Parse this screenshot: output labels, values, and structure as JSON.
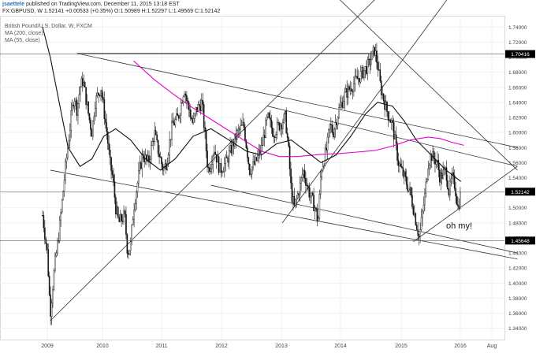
{
  "header": {
    "author": "jsaettele",
    "published": "published on TradingView.com, December 11, 2015 13:18 EST",
    "ohlc_line": "FX:GBPUSD, W  1.52141  +0.00533 (+0.35%)  O:1.50989  H:1.52297  L:1.49569  C:1.52142"
  },
  "legend": {
    "title": "British Pound/U.S. Dollar, W, FXCM",
    "ma1": "MA (200, close)",
    "ma2": "MA (55, close)"
  },
  "annotation": "oh my!",
  "colors": {
    "candle": "#111111",
    "ma200": "#e600cc",
    "ma55": "#111111",
    "channel": "#333333",
    "price_tag_bg": "#000000",
    "price_tag_text": "#ffffff"
  },
  "chart_data": {
    "type": "candlestick",
    "symbol": "GBPUSD",
    "timeframe": "W",
    "x_tick_labels": [
      "2009",
      "2010",
      "2011",
      "2012",
      "2013",
      "2014",
      "2015",
      "2016",
      "Aug"
    ],
    "y_tick_labels": [
      "1.74000",
      "1.72000",
      "1.70000",
      "1.68000",
      "1.66000",
      "1.64000",
      "1.62000",
      "1.60000",
      "1.58000",
      "1.56000",
      "1.54000",
      "1.52000",
      "1.50000",
      "1.48000",
      "1.46000",
      "1.44000",
      "1.42000",
      "1.40000",
      "1.38000",
      "1.36000",
      "1.34000"
    ],
    "ylim": [
      1.325,
      1.755
    ],
    "price_tags": [
      "1.70416",
      "1.52142",
      "1.45648"
    ],
    "price_tag_values": [
      1.70416,
      1.52142,
      1.45648
    ],
    "closes": [
      [
        2008.92,
        1.49
      ],
      [
        2009.0,
        1.44
      ],
      [
        2009.05,
        1.36
      ],
      [
        2009.12,
        1.42
      ],
      [
        2009.2,
        1.47
      ],
      [
        2009.3,
        1.55
      ],
      [
        2009.4,
        1.62
      ],
      [
        2009.45,
        1.65
      ],
      [
        2009.5,
        1.63
      ],
      [
        2009.55,
        1.66
      ],
      [
        2009.6,
        1.67
      ],
      [
        2009.7,
        1.62
      ],
      [
        2009.75,
        1.6
      ],
      [
        2009.8,
        1.64
      ],
      [
        2009.9,
        1.66
      ],
      [
        2010.0,
        1.6
      ],
      [
        2010.05,
        1.56
      ],
      [
        2010.1,
        1.54
      ],
      [
        2010.15,
        1.5
      ],
      [
        2010.2,
        1.48
      ],
      [
        2010.3,
        1.49
      ],
      [
        2010.35,
        1.44
      ],
      [
        2010.4,
        1.45
      ],
      [
        2010.45,
        1.5
      ],
      [
        2010.55,
        1.55
      ],
      [
        2010.6,
        1.57
      ],
      [
        2010.7,
        1.56
      ],
      [
        2010.8,
        1.6
      ],
      [
        2010.85,
        1.58
      ],
      [
        2010.95,
        1.55
      ],
      [
        2011.0,
        1.56
      ],
      [
        2011.1,
        1.61
      ],
      [
        2011.2,
        1.62
      ],
      [
        2011.3,
        1.66
      ],
      [
        2011.35,
        1.64
      ],
      [
        2011.45,
        1.61
      ],
      [
        2011.5,
        1.63
      ],
      [
        2011.6,
        1.64
      ],
      [
        2011.7,
        1.55
      ],
      [
        2011.75,
        1.56
      ],
      [
        2011.8,
        1.58
      ],
      [
        2011.9,
        1.55
      ],
      [
        2012.0,
        1.56
      ],
      [
        2012.1,
        1.58
      ],
      [
        2012.2,
        1.6
      ],
      [
        2012.3,
        1.61
      ],
      [
        2012.35,
        1.58
      ],
      [
        2012.4,
        1.55
      ],
      [
        2012.5,
        1.56
      ],
      [
        2012.6,
        1.58
      ],
      [
        2012.7,
        1.62
      ],
      [
        2012.8,
        1.6
      ],
      [
        2012.9,
        1.61
      ],
      [
        2013.0,
        1.62
      ],
      [
        2013.05,
        1.58
      ],
      [
        2013.1,
        1.52
      ],
      [
        2013.15,
        1.5
      ],
      [
        2013.25,
        1.53
      ],
      [
        2013.3,
        1.55
      ],
      [
        2013.4,
        1.52
      ],
      [
        2013.5,
        1.5
      ],
      [
        2013.55,
        1.48
      ],
      [
        2013.6,
        1.55
      ],
      [
        2013.7,
        1.58
      ],
      [
        2013.75,
        1.61
      ],
      [
        2013.8,
        1.6
      ],
      [
        2013.9,
        1.63
      ],
      [
        2014.0,
        1.65
      ],
      [
        2014.1,
        1.66
      ],
      [
        2014.2,
        1.67
      ],
      [
        2014.3,
        1.68
      ],
      [
        2014.4,
        1.69
      ],
      [
        2014.5,
        1.71
      ],
      [
        2014.55,
        1.69
      ],
      [
        2014.6,
        1.66
      ],
      [
        2014.7,
        1.63
      ],
      [
        2014.8,
        1.61
      ],
      [
        2014.9,
        1.56
      ],
      [
        2015.0,
        1.54
      ],
      [
        2015.1,
        1.52
      ],
      [
        2015.2,
        1.48
      ],
      [
        2015.25,
        1.46
      ],
      [
        2015.3,
        1.49
      ],
      [
        2015.35,
        1.52
      ],
      [
        2015.4,
        1.56
      ],
      [
        2015.45,
        1.57
      ],
      [
        2015.55,
        1.56
      ],
      [
        2015.6,
        1.54
      ],
      [
        2015.7,
        1.55
      ],
      [
        2015.75,
        1.52
      ],
      [
        2015.8,
        1.54
      ],
      [
        2015.85,
        1.53
      ],
      [
        2015.9,
        1.5
      ],
      [
        2015.95,
        1.52
      ]
    ],
    "ma200": [
      [
        2010.45,
        1.695
      ],
      [
        2010.8,
        1.67
      ],
      [
        2011.1,
        1.652
      ],
      [
        2011.4,
        1.635
      ],
      [
        2011.7,
        1.62
      ],
      [
        2012.0,
        1.605
      ],
      [
        2012.3,
        1.59
      ],
      [
        2012.6,
        1.575
      ],
      [
        2012.9,
        1.568
      ],
      [
        2013.2,
        1.568
      ],
      [
        2013.6,
        1.571
      ],
      [
        2013.9,
        1.572
      ],
      [
        2014.2,
        1.574
      ],
      [
        2014.5,
        1.576
      ],
      [
        2014.8,
        1.582
      ],
      [
        2015.1,
        1.59
      ],
      [
        2015.4,
        1.594
      ],
      [
        2015.6,
        1.592
      ],
      [
        2015.8,
        1.587
      ],
      [
        2016.0,
        1.583
      ]
    ],
    "ma55": [
      [
        2008.92,
        1.74
      ],
      [
        2009.05,
        1.7
      ],
      [
        2009.2,
        1.64
      ],
      [
        2009.35,
        1.58
      ],
      [
        2009.55,
        1.555
      ],
      [
        2009.75,
        1.565
      ],
      [
        2009.95,
        1.595
      ],
      [
        2010.15,
        1.605
      ],
      [
        2010.4,
        1.59
      ],
      [
        2010.65,
        1.565
      ],
      [
        2010.9,
        1.55
      ],
      [
        2011.15,
        1.565
      ],
      [
        2011.45,
        1.595
      ],
      [
        2011.75,
        1.605
      ],
      [
        2012.05,
        1.59
      ],
      [
        2012.35,
        1.575
      ],
      [
        2012.6,
        1.57
      ],
      [
        2012.85,
        1.585
      ],
      [
        2013.1,
        1.59
      ],
      [
        2013.35,
        1.575
      ],
      [
        2013.6,
        1.56
      ],
      [
        2013.85,
        1.57
      ],
      [
        2014.1,
        1.595
      ],
      [
        2014.35,
        1.625
      ],
      [
        2014.55,
        1.64
      ],
      [
        2014.8,
        1.635
      ],
      [
        2015.0,
        1.615
      ],
      [
        2015.2,
        1.59
      ],
      [
        2015.45,
        1.57
      ],
      [
        2015.7,
        1.55
      ],
      [
        2015.95,
        1.535
      ]
    ],
    "trendlines": [
      [
        [
          2009.5,
          1.705
        ],
        [
          2016.9,
          1.58
        ]
      ],
      [
        [
          2012.7,
          1.635
        ],
        [
          2016.9,
          1.555
        ]
      ],
      [
        [
          2009.05,
          1.55
        ],
        [
          2016.9,
          1.432
        ]
      ],
      [
        [
          2011.75,
          1.53
        ],
        [
          2016.9,
          1.44
        ]
      ],
      [
        [
          2009.05,
          1.35
        ],
        [
          2014.55,
          1.78
        ]
      ],
      [
        [
          2012.95,
          1.48
        ],
        [
          2015.75,
          1.78
        ]
      ],
      [
        [
          2015.15,
          1.455
        ],
        [
          2016.9,
          1.555
        ]
      ],
      [
        [
          2013.8,
          1.785
        ],
        [
          2016.9,
          1.55
        ]
      ],
      [
        [
          2009.5,
          1.705
        ],
        [
          2014.55,
          1.705
        ]
      ]
    ]
  }
}
